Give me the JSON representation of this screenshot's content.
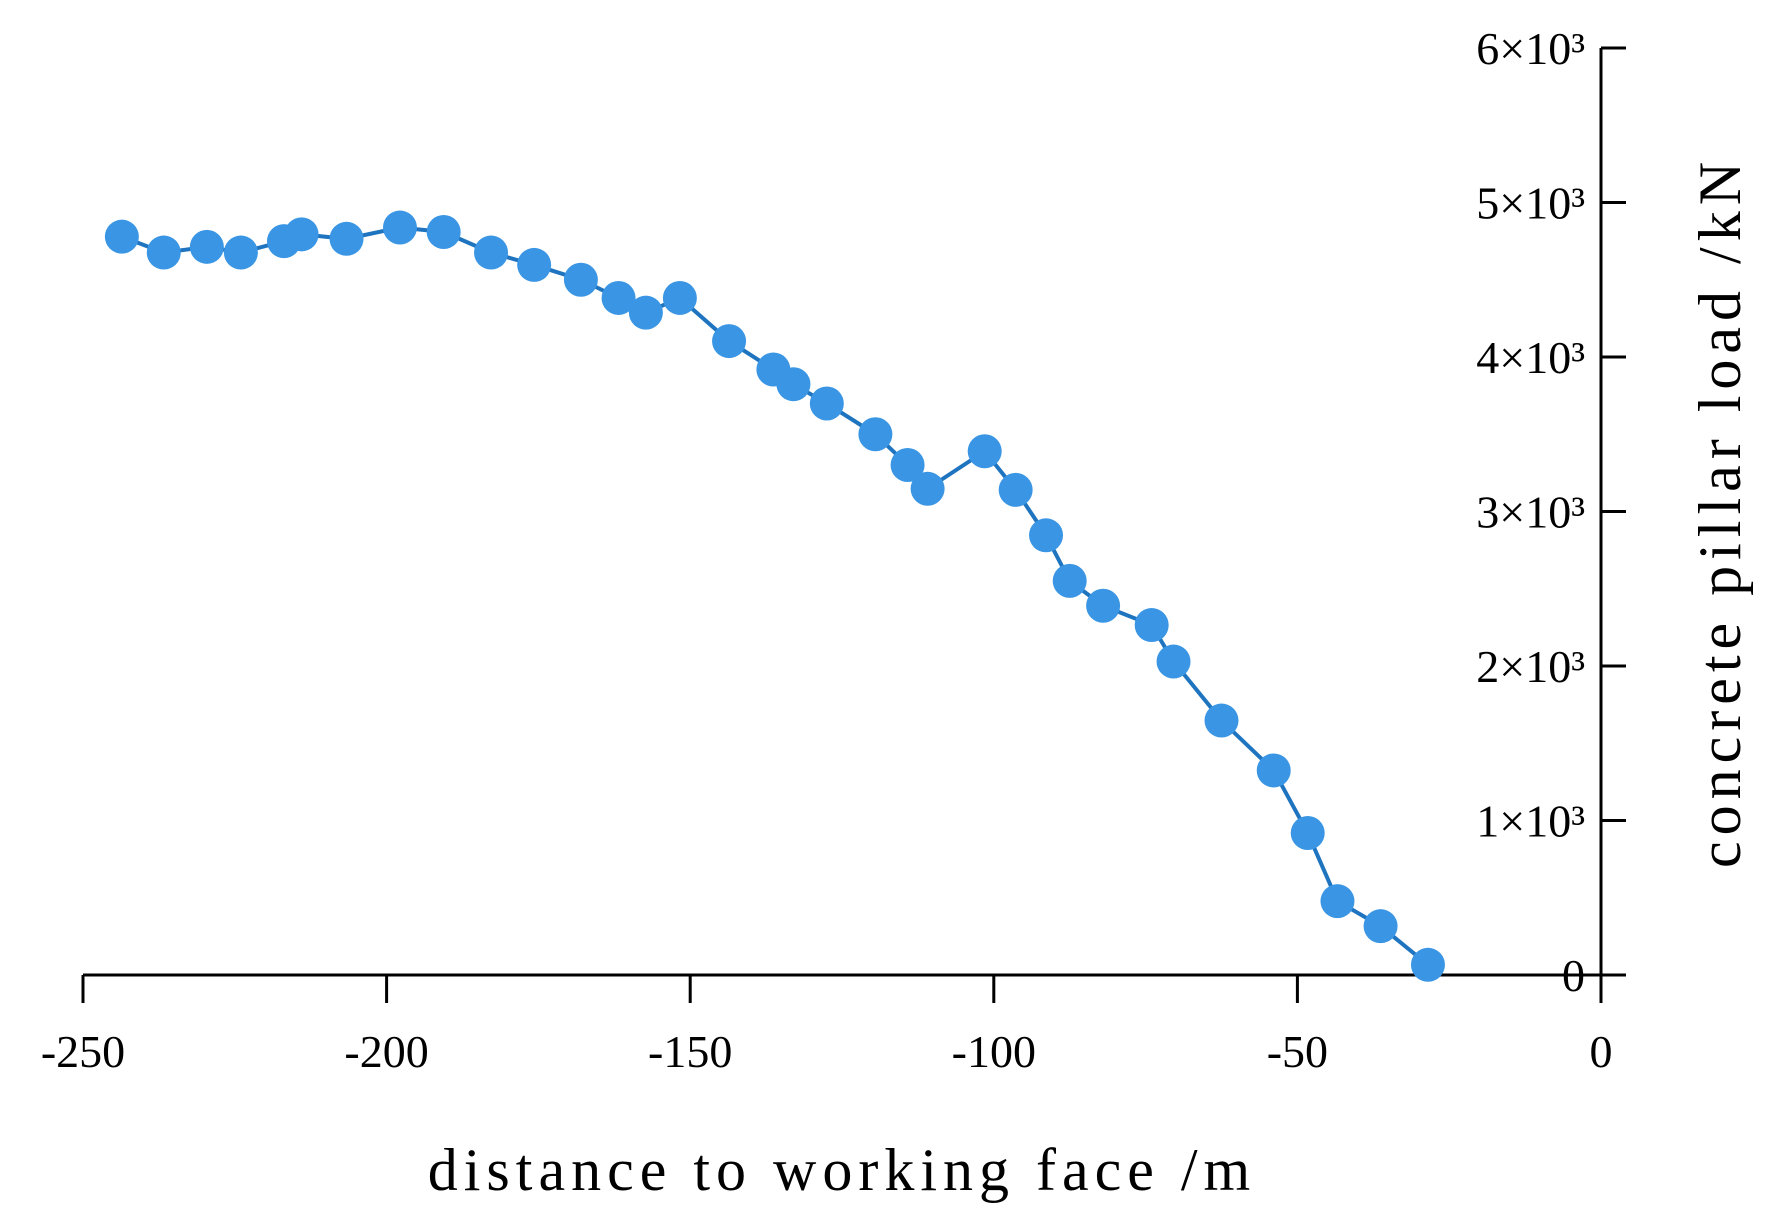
{
  "chart_data": {
    "type": "line",
    "x_label": "distance to working face /m",
    "y_label": "concrete pillar load /kN",
    "series": [
      {
        "color": "#3a96e4",
        "line_color": "#1f74c0",
        "x": [
          -243.6,
          -236.7,
          -229.6,
          -224.0,
          -216.9,
          -214.0,
          -206.6,
          -197.8,
          -190.6,
          -182.8,
          -175.7,
          -168.0,
          -161.8,
          -157.3,
          -151.7,
          -143.6,
          -136.3,
          -133.0,
          -127.5,
          -119.5,
          -114.2,
          -110.9,
          -101.5,
          -96.4,
          -91.4,
          -87.5,
          -82.0,
          -74.0,
          -70.4,
          -62.5,
          -53.9,
          -48.3,
          -43.4,
          -36.3,
          -28.5
        ],
        "values": [
          4779,
          4676,
          4713,
          4676,
          4750,
          4794,
          4765,
          4838,
          4809,
          4676,
          4596,
          4500,
          4382,
          4287,
          4382,
          4103,
          3919,
          3824,
          3699,
          3500,
          3301,
          3147,
          3390,
          3140,
          2846,
          2551,
          2390,
          2265,
          2029,
          1647,
          1324,
          919,
          478,
          316,
          66
        ]
      }
    ],
    "xlim": [
      -250,
      0
    ],
    "xticks": [
      -250,
      -200,
      -150,
      -100,
      -50,
      0
    ],
    "ylim": [
      0,
      6000
    ],
    "yticks": [
      0,
      {
        "value": 1000,
        "label": "1×10³"
      },
      {
        "value": 2000,
        "label": "2×10³"
      },
      {
        "value": 3000,
        "label": "3×10³"
      },
      {
        "value": 4000,
        "label": "4×10³"
      },
      {
        "value": 5000,
        "label": "5×10³"
      },
      {
        "value": 6000,
        "label": "6×10³"
      }
    ]
  }
}
